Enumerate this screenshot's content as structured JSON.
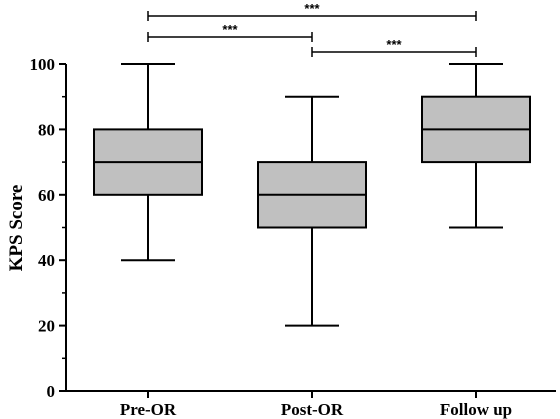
{
  "chart_data": {
    "type": "box",
    "ylabel": "KPS Score",
    "ylim": [
      0,
      100
    ],
    "yticks": [
      0,
      20,
      40,
      60,
      80,
      100
    ],
    "categories": [
      "Pre-OR",
      "Post-OR",
      "Follow up"
    ],
    "boxes": [
      {
        "category": "Pre-OR",
        "min": 40,
        "q1": 60,
        "median": 70,
        "q3": 80,
        "max": 100
      },
      {
        "category": "Post-OR",
        "min": 20,
        "q1": 50,
        "median": 60,
        "q3": 70,
        "max": 90
      },
      {
        "category": "Follow up",
        "min": 50,
        "q1": 70,
        "median": 80,
        "q3": 90,
        "max": 100
      }
    ],
    "significance": [
      {
        "from": "Pre-OR",
        "to": "Follow up",
        "label": "***"
      },
      {
        "from": "Pre-OR",
        "to": "Post-OR",
        "label": "***"
      },
      {
        "from": "Post-OR",
        "to": "Follow up",
        "label": "***"
      }
    ],
    "colors": {
      "box_fill": "#c0c0c0",
      "stroke": "#000000"
    }
  }
}
